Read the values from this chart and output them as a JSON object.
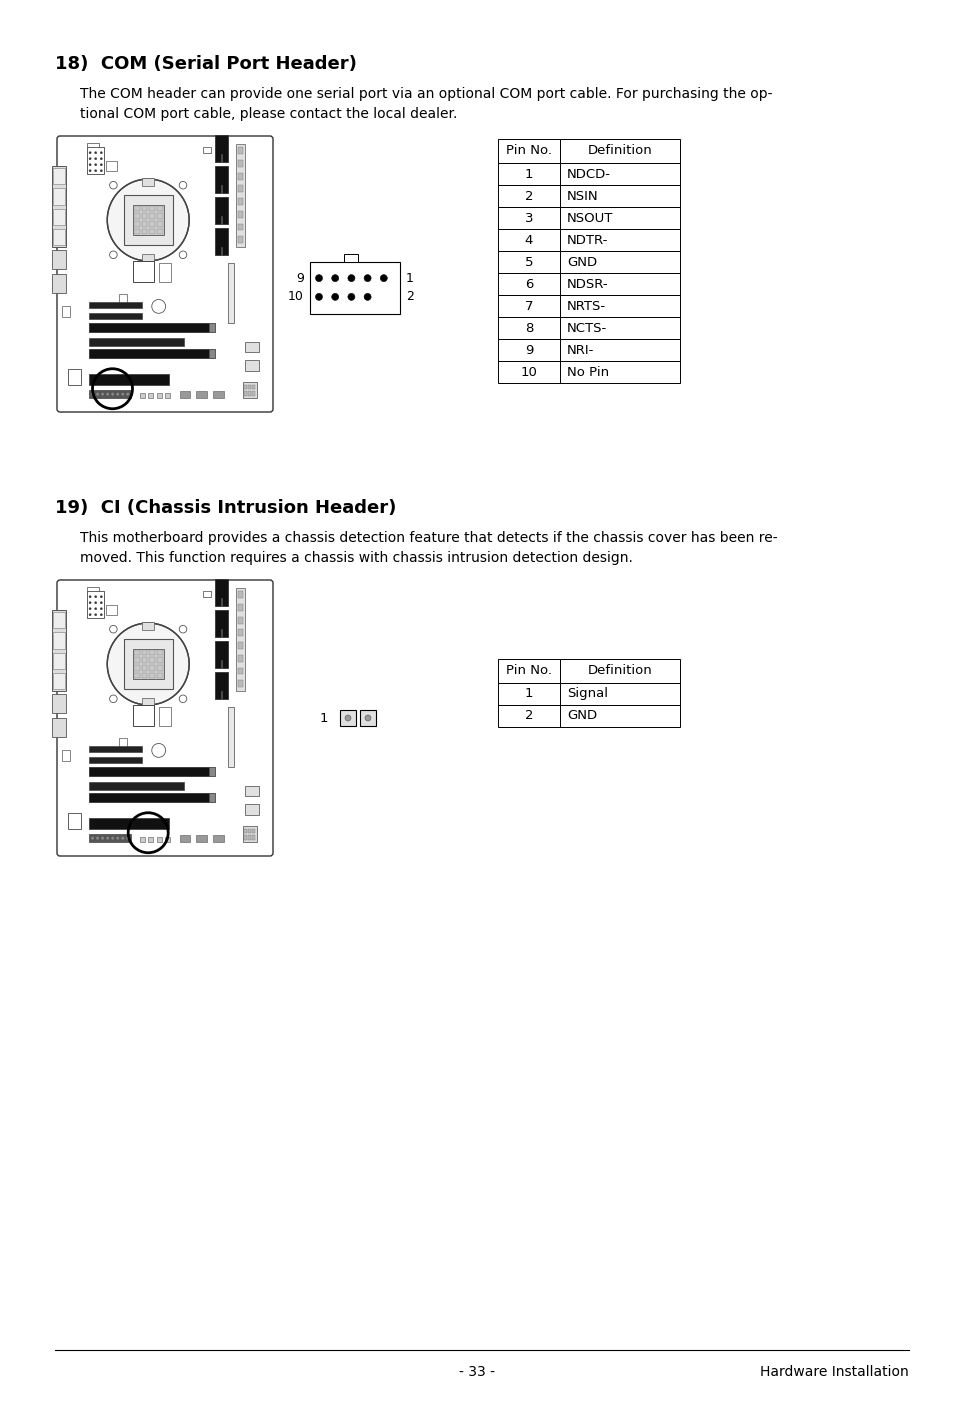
{
  "bg_color": "#ffffff",
  "section18_title": "18)  COM (Serial Port Header)",
  "section18_body1": "The COM header can provide one serial port via an optional COM port cable. For purchasing the op-",
  "section18_body2": "tional COM port cable, please contact the local dealer.",
  "section19_title": "19)  CI (Chassis Intrusion Header)",
  "section19_body1": "This motherboard provides a chassis detection feature that detects if the chassis cover has been re-",
  "section19_body2": "moved. This function requires a chassis with chassis intrusion detection design.",
  "com_table_headers": [
    "Pin No.",
    "Definition"
  ],
  "com_table_rows": [
    [
      "1",
      "NDCD-"
    ],
    [
      "2",
      "NSIN"
    ],
    [
      "3",
      "NSOUT"
    ],
    [
      "4",
      "NDTR-"
    ],
    [
      "5",
      "GND"
    ],
    [
      "6",
      "NDSR-"
    ],
    [
      "7",
      "NRTS-"
    ],
    [
      "8",
      "NCTS-"
    ],
    [
      "9",
      "NRI-"
    ],
    [
      "10",
      "No Pin"
    ]
  ],
  "ci_table_headers": [
    "Pin No.",
    "Definition"
  ],
  "ci_table_rows": [
    [
      "1",
      "Signal"
    ],
    [
      "2",
      "GND"
    ]
  ],
  "footer_left": "- 33 -",
  "footer_right": "Hardware Installation",
  "text_color": "#000000",
  "table_border_color": "#000000"
}
